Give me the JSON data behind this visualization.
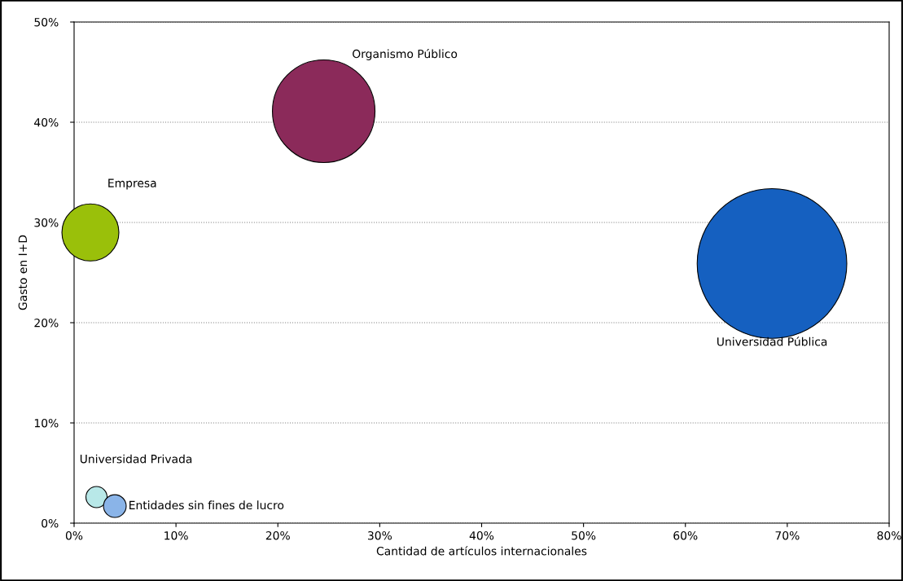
{
  "chart_data": {
    "type": "bubble",
    "xlabel": "Cantidad de artículos internacionales",
    "ylabel": "Gasto en I+D",
    "xlim": [
      0,
      0.8
    ],
    "ylim": [
      0,
      0.5
    ],
    "xticks": [
      {
        "value": 0,
        "label": "0%"
      },
      {
        "value": 0.1,
        "label": "10%"
      },
      {
        "value": 0.2,
        "label": "20%"
      },
      {
        "value": 0.3,
        "label": "30%"
      },
      {
        "value": 0.4,
        "label": "40%"
      },
      {
        "value": 0.5,
        "label": "50%"
      },
      {
        "value": 0.6,
        "label": "60%"
      },
      {
        "value": 0.7,
        "label": "70%"
      },
      {
        "value": 0.8,
        "label": "80%"
      }
    ],
    "yticks": [
      {
        "value": 0,
        "label": "0%"
      },
      {
        "value": 0.1,
        "label": "10%"
      },
      {
        "value": 0.2,
        "label": "20%"
      },
      {
        "value": 0.3,
        "label": "30%"
      },
      {
        "value": 0.4,
        "label": "40%"
      },
      {
        "value": 0.5,
        "label": "50%"
      }
    ],
    "grid": "y",
    "legend": false,
    "series": [
      {
        "name": "Empresa",
        "color": "#9ac00a",
        "x": [
          0.016
        ],
        "values": [
          0.29
        ],
        "sizes": [
          0.145
        ]
      },
      {
        "name": "Organismo Público",
        "color": "#8b2a5a",
        "x": [
          0.245
        ],
        "values": [
          0.411
        ],
        "sizes": [
          0.47
        ]
      },
      {
        "name": "Universidad Pública",
        "color": "#1560c0",
        "x": [
          0.685
        ],
        "values": [
          0.259
        ],
        "sizes": [
          1
        ]
      },
      {
        "name": "Universidad Privada",
        "color": "#b8e8e8",
        "x": [
          0.022
        ],
        "values": [
          0.026
        ],
        "sizes": [
          0.02
        ]
      },
      {
        "name": "Entidades sin fines de lucro",
        "color": "#8ab4e8",
        "x": [
          0.04
        ],
        "values": [
          0.017
        ],
        "sizes": [
          0.023
        ]
      }
    ]
  }
}
